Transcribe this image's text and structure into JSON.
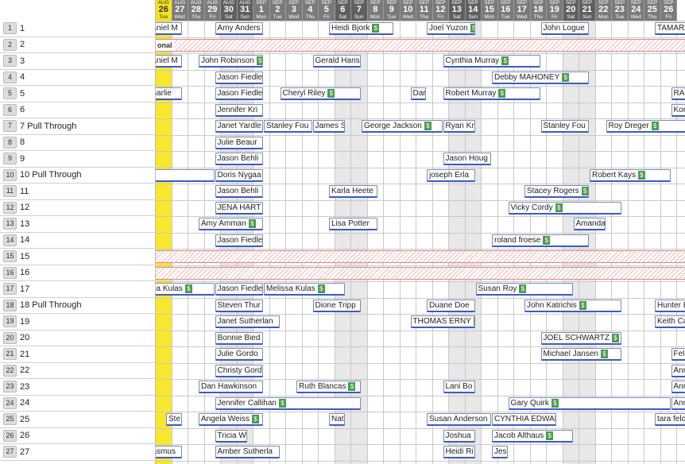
{
  "sites": [
    {
      "num": "1",
      "label": "1"
    },
    {
      "num": "2",
      "label": "2"
    },
    {
      "num": "3",
      "label": "3"
    },
    {
      "num": "4",
      "label": "4"
    },
    {
      "num": "5",
      "label": "5"
    },
    {
      "num": "6",
      "label": "6"
    },
    {
      "num": "7",
      "label": "7 Pull Through"
    },
    {
      "num": "8",
      "label": "8"
    },
    {
      "num": "9",
      "label": "9"
    },
    {
      "num": "10",
      "label": "10 Pull Through"
    },
    {
      "num": "11",
      "label": "11"
    },
    {
      "num": "12",
      "label": "12"
    },
    {
      "num": "13",
      "label": "13"
    },
    {
      "num": "14",
      "label": "14"
    },
    {
      "num": "15",
      "label": "15"
    },
    {
      "num": "16",
      "label": "16"
    },
    {
      "num": "17",
      "label": "17"
    },
    {
      "num": "18",
      "label": "18 Pull Through"
    },
    {
      "num": "19",
      "label": "19"
    },
    {
      "num": "20",
      "label": "20"
    },
    {
      "num": "21",
      "label": "21"
    },
    {
      "num": "22",
      "label": "22"
    },
    {
      "num": "23",
      "label": "23"
    },
    {
      "num": "24",
      "label": "24"
    },
    {
      "num": "25",
      "label": "25"
    },
    {
      "num": "26",
      "label": "26"
    },
    {
      "num": "27",
      "label": "27"
    }
  ],
  "days": [
    {
      "m": "AUG",
      "d": "26",
      "w": "Tue",
      "today": true
    },
    {
      "m": "AUG",
      "d": "27",
      "w": "Wed"
    },
    {
      "m": "AUG",
      "d": "28",
      "w": "Thu"
    },
    {
      "m": "AUG",
      "d": "29",
      "w": "Fri"
    },
    {
      "m": "AUG",
      "d": "30",
      "w": "Sat",
      "weekend": true
    },
    {
      "m": "AUG",
      "d": "31",
      "w": "Sun",
      "weekend": true
    },
    {
      "m": "SEP",
      "d": "1",
      "w": "Mon"
    },
    {
      "m": "SEP",
      "d": "2",
      "w": "Tue"
    },
    {
      "m": "SEP",
      "d": "3",
      "w": "Wed"
    },
    {
      "m": "SEP",
      "d": "4",
      "w": "Thu"
    },
    {
      "m": "SEP",
      "d": "5",
      "w": "Fri"
    },
    {
      "m": "SEP",
      "d": "6",
      "w": "Sat",
      "weekend": true
    },
    {
      "m": "SEP",
      "d": "7",
      "w": "Sun",
      "weekend": true
    },
    {
      "m": "SEP",
      "d": "8",
      "w": "Mon"
    },
    {
      "m": "SEP",
      "d": "9",
      "w": "Tue"
    },
    {
      "m": "SEP",
      "d": "10",
      "w": "Wed"
    },
    {
      "m": "SEP",
      "d": "11",
      "w": "Thu"
    },
    {
      "m": "SEP",
      "d": "12",
      "w": "Fri"
    },
    {
      "m": "SEP",
      "d": "13",
      "w": "Sat",
      "weekend": true
    },
    {
      "m": "SEP",
      "d": "14",
      "w": "Sun",
      "weekend": true
    },
    {
      "m": "SEP",
      "d": "15",
      "w": "Mon"
    },
    {
      "m": "SEP",
      "d": "16",
      "w": "Tue"
    },
    {
      "m": "SEP",
      "d": "17",
      "w": "Wed"
    },
    {
      "m": "SEP",
      "d": "18",
      "w": "Thu"
    },
    {
      "m": "SEP",
      "d": "19",
      "w": "Fri"
    },
    {
      "m": "SEP",
      "d": "20",
      "w": "Sat",
      "weekend": true
    },
    {
      "m": "SEP",
      "d": "21",
      "w": "Sun",
      "weekend": true
    },
    {
      "m": "SEP",
      "d": "22",
      "w": "Mon"
    },
    {
      "m": "SEP",
      "d": "23",
      "w": "Tue"
    },
    {
      "m": "SEP",
      "d": "24",
      "w": "Wed"
    },
    {
      "m": "SEP",
      "d": "25",
      "w": "Thu"
    },
    {
      "m": "SEP",
      "d": "26",
      "w": "Fri"
    }
  ],
  "closed_rows": [
    {
      "row": 1,
      "label": "onal"
    },
    {
      "row": 14,
      "label": ""
    },
    {
      "row": 15,
      "label": ""
    }
  ],
  "reservations": [
    {
      "row": 0,
      "start": -1,
      "span": 2,
      "name": "aniel M",
      "paid": false
    },
    {
      "row": 0,
      "start": 3,
      "span": 3,
      "name": "Amy Anders",
      "paid": false
    },
    {
      "row": 0,
      "start": 10,
      "span": 4,
      "name": "Heidi Bjork",
      "paid": true
    },
    {
      "row": 0,
      "start": 16,
      "span": 3,
      "name": "Joel Yuzon",
      "paid": true
    },
    {
      "row": 0,
      "start": 23,
      "span": 3,
      "name": "John Logue",
      "paid": false
    },
    {
      "row": 0,
      "start": 30,
      "span": 3,
      "name": "TAMARA",
      "paid": false
    },
    {
      "row": 2,
      "start": -1,
      "span": 2,
      "name": "aniel M",
      "paid": false
    },
    {
      "row": 2,
      "start": 2,
      "span": 4,
      "name": "John Robinson",
      "paid": true
    },
    {
      "row": 2,
      "start": 9,
      "span": 3,
      "name": "Gerald Hans",
      "paid": false
    },
    {
      "row": 2,
      "start": 17,
      "span": 6,
      "name": "Cynthia Murray",
      "paid": true
    },
    {
      "row": 3,
      "start": 3,
      "span": 3,
      "name": "Jason Fiedle",
      "paid": false
    },
    {
      "row": 3,
      "start": 20,
      "span": 6,
      "name": "Debby MAHONEY",
      "paid": true
    },
    {
      "row": 4,
      "start": -1,
      "span": 2,
      "name": "harlie",
      "paid": false
    },
    {
      "row": 4,
      "start": 3,
      "span": 3,
      "name": "Jason Fiedle",
      "paid": false
    },
    {
      "row": 4,
      "start": 7,
      "span": 5,
      "name": "Cheryl Riley",
      "paid": true
    },
    {
      "row": 4,
      "start": 15,
      "span": 1,
      "name": "Dar",
      "paid": false
    },
    {
      "row": 4,
      "start": 17,
      "span": 6,
      "name": "Robert Murray",
      "paid": true
    },
    {
      "row": 4,
      "start": 31,
      "span": 2,
      "name": "RAN",
      "paid": false
    },
    {
      "row": 5,
      "start": 3,
      "span": 3,
      "name": "Jennifer Kri",
      "paid": false
    },
    {
      "row": 5,
      "start": 31,
      "span": 2,
      "name": "Kory",
      "paid": false
    },
    {
      "row": 6,
      "start": 3,
      "span": 3,
      "name": "Janet Yardle",
      "paid": false
    },
    {
      "row": 6,
      "start": 6,
      "span": 3,
      "name": "Stanley Fou",
      "paid": false
    },
    {
      "row": 6,
      "start": 9,
      "span": 2,
      "name": "James S",
      "paid": false
    },
    {
      "row": 6,
      "start": 12,
      "span": 5,
      "name": "George Jackson",
      "paid": true
    },
    {
      "row": 6,
      "start": 17,
      "span": 2,
      "name": "Ryan Kr",
      "paid": false
    },
    {
      "row": 6,
      "start": 23,
      "span": 3,
      "name": "Stanley Fou",
      "paid": false
    },
    {
      "row": 6,
      "start": 27,
      "span": 5,
      "name": "Roy Dreger",
      "paid": true
    },
    {
      "row": 7,
      "start": 3,
      "span": 3,
      "name": "Julie Beaur",
      "paid": false
    },
    {
      "row": 8,
      "start": 3,
      "span": 3,
      "name": "Jason Behli",
      "paid": false
    },
    {
      "row": 8,
      "start": 17,
      "span": 3,
      "name": "Jason Houg",
      "paid": false
    },
    {
      "row": 9,
      "start": -1,
      "span": 4,
      "name": "",
      "paid": false
    },
    {
      "row": 9,
      "start": 3,
      "span": 3,
      "name": "Doris Nygaa",
      "paid": false
    },
    {
      "row": 9,
      "start": 16,
      "span": 3,
      "name": "joseph Erla",
      "paid": false
    },
    {
      "row": 9,
      "start": 26,
      "span": 5,
      "name": "Robert Kays",
      "paid": true
    },
    {
      "row": 10,
      "start": 3,
      "span": 3,
      "name": "Jason Behli",
      "paid": false
    },
    {
      "row": 10,
      "start": 10,
      "span": 3,
      "name": "Karla Heete",
      "paid": false
    },
    {
      "row": 10,
      "start": 22,
      "span": 4,
      "name": "Stacey Rogers",
      "paid": true
    },
    {
      "row": 11,
      "start": 3,
      "span": 3,
      "name": "JENA HART",
      "paid": false
    },
    {
      "row": 11,
      "start": 21,
      "span": 7,
      "name": "Vicky Cordy",
      "paid": true
    },
    {
      "row": 12,
      "start": 2,
      "span": 4,
      "name": "Amy Amman",
      "paid": true
    },
    {
      "row": 12,
      "start": 10,
      "span": 3,
      "name": "Lisa Potter",
      "paid": false
    },
    {
      "row": 12,
      "start": 25,
      "span": 2,
      "name": "Amanda",
      "paid": false
    },
    {
      "row": 13,
      "start": 3,
      "span": 3,
      "name": "Jason Fiedle",
      "paid": false
    },
    {
      "row": 13,
      "start": 20,
      "span": 6,
      "name": "roland froese",
      "paid": true
    },
    {
      "row": 16,
      "start": -1,
      "span": 4,
      "name": "sa Kulas",
      "paid": true
    },
    {
      "row": 16,
      "start": 3,
      "span": 3,
      "name": "Jason Fiedle",
      "paid": false
    },
    {
      "row": 16,
      "start": 6,
      "span": 5,
      "name": "Melissa Kulas",
      "paid": true
    },
    {
      "row": 16,
      "start": 19,
      "span": 6,
      "name": "Susan Roy",
      "paid": true
    },
    {
      "row": 17,
      "start": 3,
      "span": 3,
      "name": "Steven Thur",
      "paid": false
    },
    {
      "row": 17,
      "start": 9,
      "span": 3,
      "name": "Dione Tripp",
      "paid": false
    },
    {
      "row": 17,
      "start": 16,
      "span": 3,
      "name": "Duane Doe",
      "paid": false
    },
    {
      "row": 17,
      "start": 22,
      "span": 6,
      "name": "John Katrichis",
      "paid": true
    },
    {
      "row": 17,
      "start": 30,
      "span": 3,
      "name": "Hunter E",
      "paid": false
    },
    {
      "row": 18,
      "start": 3,
      "span": 4,
      "name": "Janet Sutherlan",
      "paid": false
    },
    {
      "row": 18,
      "start": 15,
      "span": 4,
      "name": "THOMAS ERNY",
      "paid": true
    },
    {
      "row": 18,
      "start": 30,
      "span": 3,
      "name": "Keith Ca",
      "paid": false
    },
    {
      "row": 19,
      "start": 3,
      "span": 3,
      "name": "Bonnie Bied",
      "paid": false
    },
    {
      "row": 19,
      "start": 23,
      "span": 5,
      "name": "JOEL SCHWARTZ",
      "paid": true
    },
    {
      "row": 20,
      "start": 3,
      "span": 3,
      "name": "Julie Gordo",
      "paid": false
    },
    {
      "row": 20,
      "start": 23,
      "span": 5,
      "name": "Michael Jansen",
      "paid": true
    },
    {
      "row": 20,
      "start": 31,
      "span": 2,
      "name": "Fel",
      "paid": false
    },
    {
      "row": 21,
      "start": 3,
      "span": 3,
      "name": "Christy Gord",
      "paid": false
    },
    {
      "row": 21,
      "start": 31,
      "span": 2,
      "name": "Ann",
      "paid": false
    },
    {
      "row": 22,
      "start": 2,
      "span": 4,
      "name": "Dan Hawkinson",
      "paid": false
    },
    {
      "row": 22,
      "start": 8,
      "span": 4,
      "name": "Ruth Blancas",
      "paid": true
    },
    {
      "row": 22,
      "start": 17,
      "span": 2,
      "name": "Lani Bo",
      "paid": false
    },
    {
      "row": 22,
      "start": 31,
      "span": 2,
      "name": "Ann",
      "paid": false
    },
    {
      "row": 23,
      "start": 3,
      "span": 9,
      "name": "Jennifer Callihan",
      "paid": true
    },
    {
      "row": 23,
      "start": 21,
      "span": 10,
      "name": "Gary Quirk",
      "paid": true
    },
    {
      "row": 23,
      "start": 31,
      "span": 2,
      "name": "Ann",
      "paid": false
    },
    {
      "row": 24,
      "start": 0,
      "span": 1,
      "name": "Ste",
      "paid": false
    },
    {
      "row": 24,
      "start": 2,
      "span": 4,
      "name": "Angela Weiss",
      "paid": true
    },
    {
      "row": 24,
      "start": 10,
      "span": 1,
      "name": "Nat",
      "paid": false
    },
    {
      "row": 24,
      "start": 16,
      "span": 4,
      "name": "Susan Anderson",
      "paid": false
    },
    {
      "row": 24,
      "start": 20,
      "span": 4,
      "name": "CYNTHIA EDWAR",
      "paid": false
    },
    {
      "row": 24,
      "start": 30,
      "span": 3,
      "name": "tara felc",
      "paid": false
    },
    {
      "row": 25,
      "start": 3,
      "span": 2,
      "name": "Tricia W",
      "paid": false
    },
    {
      "row": 25,
      "start": 17,
      "span": 2,
      "name": "Joshua",
      "paid": false
    },
    {
      "row": 25,
      "start": 20,
      "span": 5,
      "name": "Jacob Althaus",
      "paid": true
    },
    {
      "row": 26,
      "start": -1,
      "span": 2,
      "name": "asmus",
      "paid": false
    },
    {
      "row": 26,
      "start": 3,
      "span": 4,
      "name": "Amber Sutherla",
      "paid": false
    },
    {
      "row": 26,
      "start": 17,
      "span": 2,
      "name": "Heidi Ri",
      "paid": false
    },
    {
      "row": 26,
      "start": 20,
      "span": 1,
      "name": "Jes",
      "paid": false
    }
  ],
  "paid_symbol": "$"
}
